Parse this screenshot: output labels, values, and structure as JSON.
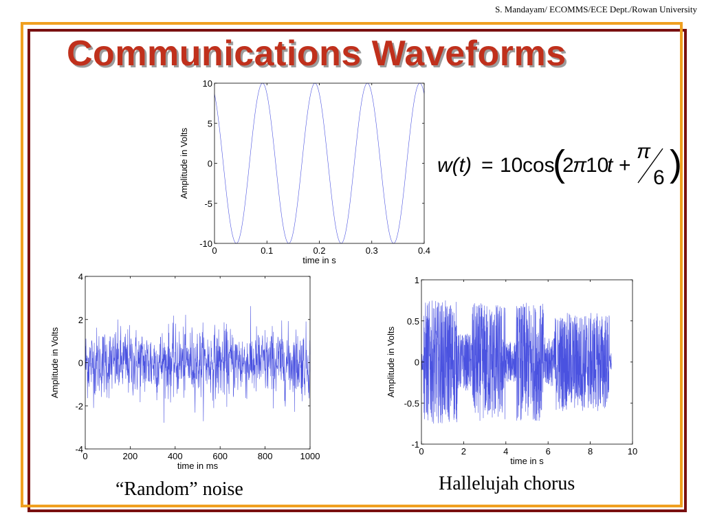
{
  "header": {
    "credit": "S. Mandayam/ ECOMMS/ECE Dept./Rowan University",
    "title": "Communications Waveforms"
  },
  "formula": {
    "lhs": "w(t)",
    "equals": "=",
    "coef": "10",
    "func": "cos",
    "two": "2",
    "pi": "π",
    "freq": "10",
    "t": "t",
    "plus": "+",
    "num": "π",
    "den": "6"
  },
  "captions": {
    "noise": "“Random” noise",
    "chorus": "Hallelujah chorus"
  },
  "colors": {
    "trace": "#4a52e0",
    "title": "#c0301c",
    "frame_outer": "#7a1010",
    "frame_inner": "#f0a020"
  },
  "chart_data": [
    {
      "id": "sine",
      "type": "line",
      "title": "",
      "xlabel": "time in s",
      "ylabel": "Amplitude in Volts",
      "xlim": [
        0,
        0.4
      ],
      "ylim": [
        -10,
        10
      ],
      "xticks": [
        0,
        0.1,
        0.2,
        0.3,
        0.4
      ],
      "xtick_labels": [
        "0",
        "0.1",
        "0.2",
        "0.3",
        "0.4"
      ],
      "yticks": [
        -10,
        -5,
        0,
        5,
        10
      ],
      "ytick_labels": [
        "-10",
        "-5",
        "0",
        "5",
        "10"
      ],
      "signal": {
        "amplitude": 10,
        "frequency_hz": 10,
        "phase_rad": 0.5236
      },
      "grid": false
    },
    {
      "id": "noise",
      "type": "line",
      "title": "",
      "xlabel": "time in ms",
      "ylabel": "Amplitude in Volts",
      "xlim": [
        0,
        1000
      ],
      "ylim": [
        -4,
        4
      ],
      "xticks": [
        0,
        200,
        400,
        600,
        800,
        1000
      ],
      "xtick_labels": [
        "0",
        "200",
        "400",
        "600",
        "800",
        "1000"
      ],
      "yticks": [
        -4,
        -2,
        0,
        2,
        4
      ],
      "ytick_labels": [
        "-4",
        "-2",
        "0",
        "2",
        "4"
      ],
      "signal": {
        "std_dev": 0.8,
        "samples": 1000
      },
      "grid": false
    },
    {
      "id": "chorus",
      "type": "line",
      "title": "",
      "xlabel": "time in s",
      "ylabel": "Amplitude in Volts",
      "xlim": [
        0,
        10
      ],
      "ylim": [
        -1,
        1
      ],
      "xticks": [
        0,
        2,
        4,
        6,
        8,
        10
      ],
      "xtick_labels": [
        "0",
        "2",
        "4",
        "6",
        "8",
        "10"
      ],
      "yticks": [
        -1,
        -0.5,
        0,
        0.5,
        1
      ],
      "ytick_labels": [
        "-1",
        "-0.5",
        "0",
        "0.5",
        "1"
      ],
      "signal": {
        "duration_s": 9,
        "peak": 0.8
      },
      "grid": false
    }
  ]
}
